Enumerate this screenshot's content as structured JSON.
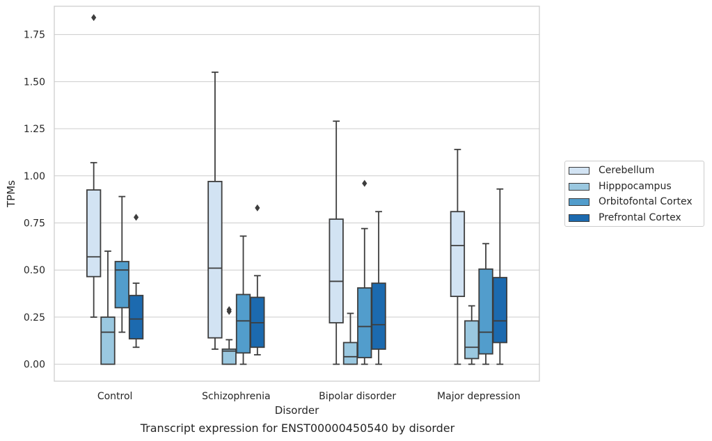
{
  "chart_data": {
    "type": "box",
    "title": "Transcript expression for ENST00000450540 by disorder",
    "xlabel": "Disorder",
    "ylabel": "TPMs",
    "ylim": [
      -0.09,
      1.9
    ],
    "yticks": [
      "0.00",
      "0.25",
      "0.50",
      "0.75",
      "1.00",
      "1.25",
      "1.50",
      "1.75"
    ],
    "ytick_values": [
      0,
      0.25,
      0.5,
      0.75,
      1.0,
      1.25,
      1.5,
      1.75
    ],
    "grid": true,
    "legend_position": "right",
    "categories": [
      "Control",
      "Schizophrenia",
      "Bipolar disorder",
      "Major depression"
    ],
    "series": [
      {
        "name": "Cerebellum",
        "color": "#d2e3f3",
        "boxes": [
          {
            "whisker_low": 0.25,
            "q1": 0.465,
            "median": 0.57,
            "q3": 0.925,
            "whisker_high": 1.07,
            "outliers": [
              1.84
            ]
          },
          {
            "whisker_low": 0.08,
            "q1": 0.14,
            "median": 0.51,
            "q3": 0.97,
            "whisker_high": 1.55,
            "outliers": []
          },
          {
            "whisker_low": 0.0,
            "q1": 0.22,
            "median": 0.44,
            "q3": 0.77,
            "whisker_high": 1.29,
            "outliers": []
          },
          {
            "whisker_low": 0.0,
            "q1": 0.36,
            "median": 0.63,
            "q3": 0.81,
            "whisker_high": 1.14,
            "outliers": []
          }
        ]
      },
      {
        "name": "Hipppocampus",
        "color": "#9ac8e0",
        "boxes": [
          {
            "whisker_low": 0.0,
            "q1": 0.0,
            "median": 0.17,
            "q3": 0.25,
            "whisker_high": 0.6,
            "outliers": []
          },
          {
            "whisker_low": 0.0,
            "q1": 0.0,
            "median": 0.07,
            "q3": 0.08,
            "whisker_high": 0.13,
            "outliers": [
              0.28,
              0.29
            ]
          },
          {
            "whisker_low": 0.0,
            "q1": 0.0,
            "median": 0.04,
            "q3": 0.115,
            "whisker_high": 0.27,
            "outliers": []
          },
          {
            "whisker_low": 0.0,
            "q1": 0.03,
            "median": 0.09,
            "q3": 0.23,
            "whisker_high": 0.31,
            "outliers": []
          }
        ]
      },
      {
        "name": "Orbitofontal Cortex",
        "color": "#529dcc",
        "boxes": [
          {
            "whisker_low": 0.17,
            "q1": 0.3,
            "median": 0.5,
            "q3": 0.545,
            "whisker_high": 0.89,
            "outliers": []
          },
          {
            "whisker_low": 0.0,
            "q1": 0.06,
            "median": 0.23,
            "q3": 0.37,
            "whisker_high": 0.68,
            "outliers": []
          },
          {
            "whisker_low": 0.0,
            "q1": 0.035,
            "median": 0.2,
            "q3": 0.405,
            "whisker_high": 0.72,
            "outliers": [
              0.96
            ]
          },
          {
            "whisker_low": 0.0,
            "q1": 0.055,
            "median": 0.17,
            "q3": 0.505,
            "whisker_high": 0.64,
            "outliers": []
          }
        ]
      },
      {
        "name": "Prefrontal Cortex",
        "color": "#1c6aaf",
        "boxes": [
          {
            "whisker_low": 0.09,
            "q1": 0.135,
            "median": 0.24,
            "q3": 0.365,
            "whisker_high": 0.43,
            "outliers": [
              0.78
            ]
          },
          {
            "whisker_low": 0.05,
            "q1": 0.09,
            "median": 0.22,
            "q3": 0.355,
            "whisker_high": 0.47,
            "outliers": [
              0.83
            ]
          },
          {
            "whisker_low": 0.0,
            "q1": 0.08,
            "median": 0.21,
            "q3": 0.43,
            "whisker_high": 0.81,
            "outliers": []
          },
          {
            "whisker_low": 0.0,
            "q1": 0.115,
            "median": 0.23,
            "q3": 0.46,
            "whisker_high": 0.93,
            "outliers": []
          }
        ]
      }
    ]
  }
}
